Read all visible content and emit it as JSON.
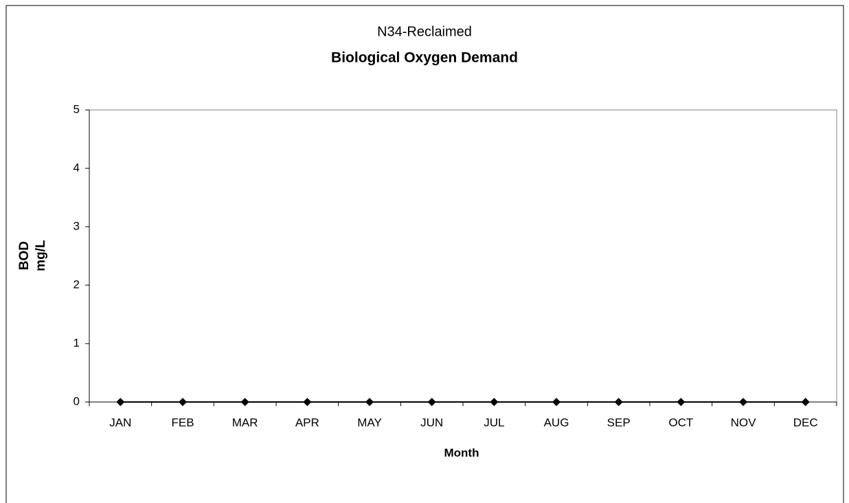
{
  "chart_data": {
    "type": "line",
    "title": "N34-Reclaimed",
    "subtitle": "Biological Oxygen Demand",
    "x_label": "Month",
    "y_label": [
      "BOD",
      "mg/L"
    ],
    "categories": [
      "JAN",
      "FEB",
      "MAR",
      "APR",
      "MAY",
      "JUN",
      "JUL",
      "AUG",
      "SEP",
      "OCT",
      "NOV",
      "DEC"
    ],
    "values": [
      0,
      0,
      0,
      0,
      0,
      0,
      0,
      0,
      0,
      0,
      0,
      0
    ],
    "color": "#000000",
    "ylim": [
      0,
      5
    ],
    "yticks": [
      0,
      1,
      2,
      3,
      4,
      5
    ],
    "grid": false
  }
}
